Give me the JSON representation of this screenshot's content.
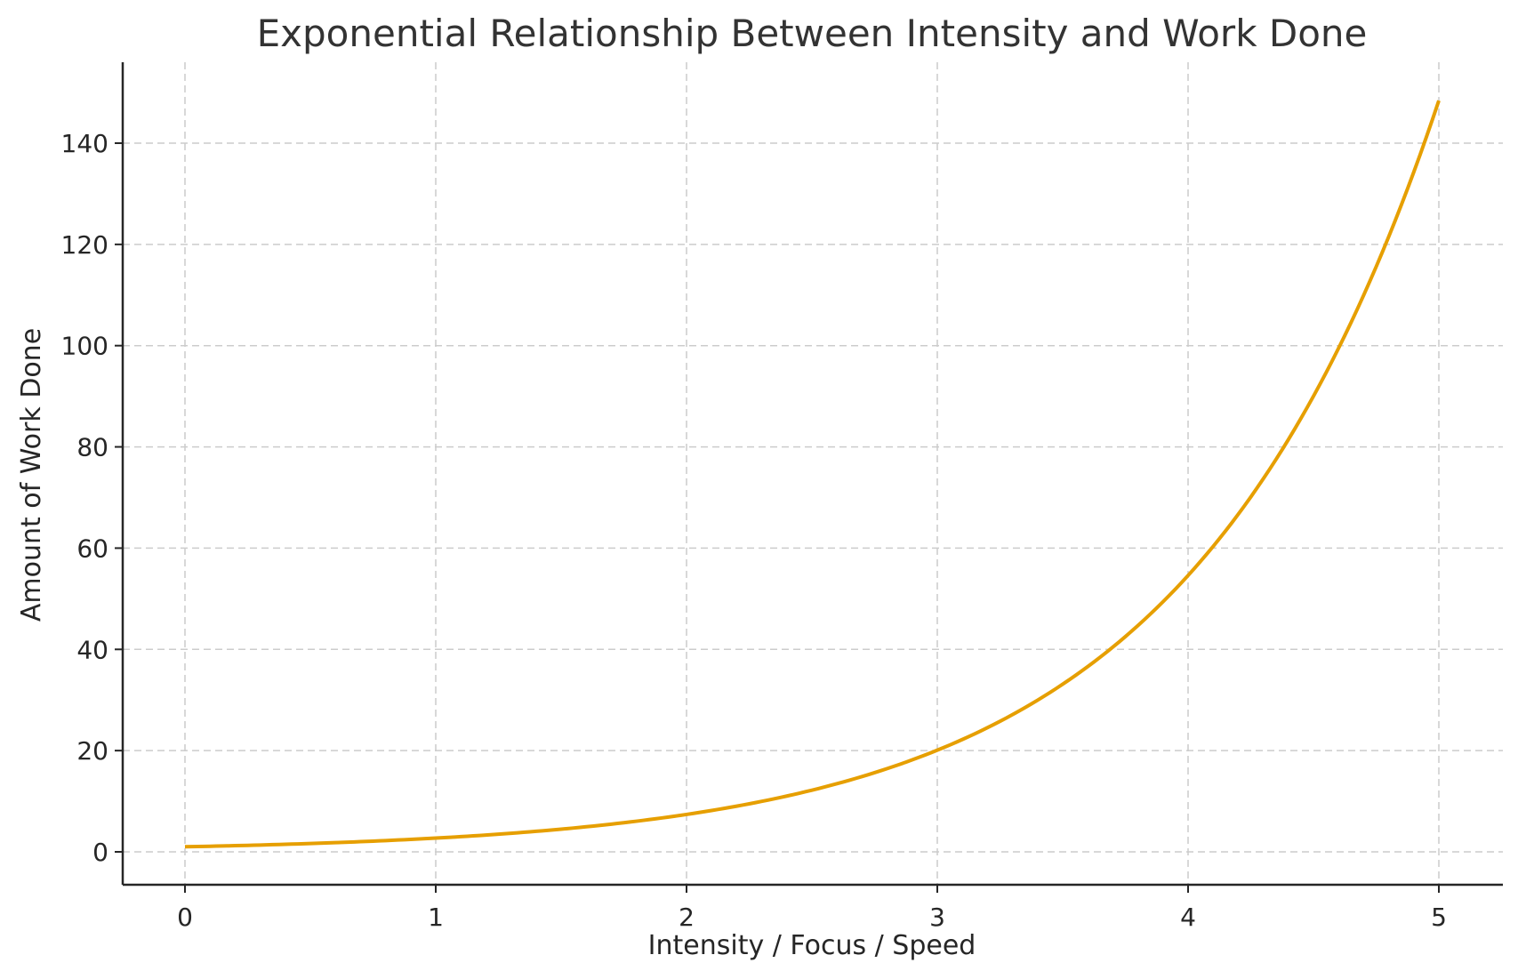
{
  "chart_data": {
    "type": "line",
    "title": "Exponential Relationship Between Intensity and Work Done",
    "xlabel": "Intensity / Focus / Speed",
    "ylabel": "Amount of Work Done",
    "xlim": [
      -0.25,
      5.25
    ],
    "ylim": [
      -6,
      156
    ],
    "x_ticks": [
      0,
      1,
      2,
      3,
      4,
      5
    ],
    "y_ticks": [
      0,
      20,
      40,
      60,
      80,
      100,
      120,
      140
    ],
    "grid": true,
    "legend": null,
    "series": [
      {
        "name": "Work Done",
        "color": "#E69F00",
        "function": "exp(x)",
        "x": [
          0,
          0.5,
          1,
          1.5,
          2,
          2.5,
          3,
          3.5,
          4,
          4.5,
          5
        ],
        "values": [
          1.0,
          1.65,
          2.72,
          4.48,
          7.39,
          12.18,
          20.09,
          33.12,
          54.6,
          90.02,
          148.41
        ]
      }
    ]
  },
  "colors": {
    "line": "#E69F00",
    "grid": "#cccccc",
    "axis": "#262626",
    "title": "#333333"
  }
}
